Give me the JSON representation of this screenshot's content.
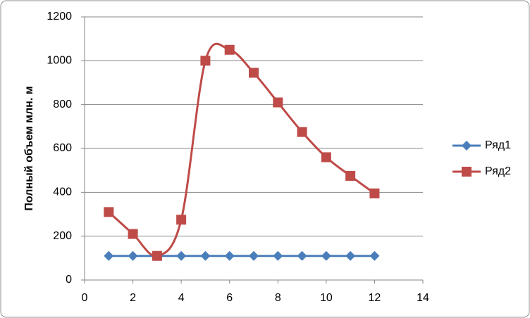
{
  "chart_data": {
    "type": "line",
    "smooth": true,
    "ylabel": "Полный объем млн. м",
    "x": [
      1,
      2,
      3,
      4,
      5,
      6,
      7,
      8,
      9,
      10,
      11,
      12
    ],
    "series": [
      {
        "name": "Ряд1",
        "color": "#4a7ebb",
        "marker": "diamond",
        "values": [
          110,
          110,
          110,
          110,
          110,
          110,
          110,
          110,
          110,
          110,
          110,
          110
        ]
      },
      {
        "name": "Ряд2",
        "color": "#be4b48",
        "marker": "square",
        "values": [
          310,
          210,
          110,
          275,
          1000,
          1050,
          945,
          810,
          675,
          560,
          475,
          395
        ]
      }
    ],
    "xlim": [
      0,
      14
    ],
    "xticks": [
      0,
      2,
      4,
      6,
      8,
      10,
      12,
      14
    ],
    "ylim": [
      0,
      1200
    ],
    "yticks": [
      0,
      200,
      400,
      600,
      800,
      1000,
      1200
    ],
    "grid": true,
    "legend": "right"
  }
}
